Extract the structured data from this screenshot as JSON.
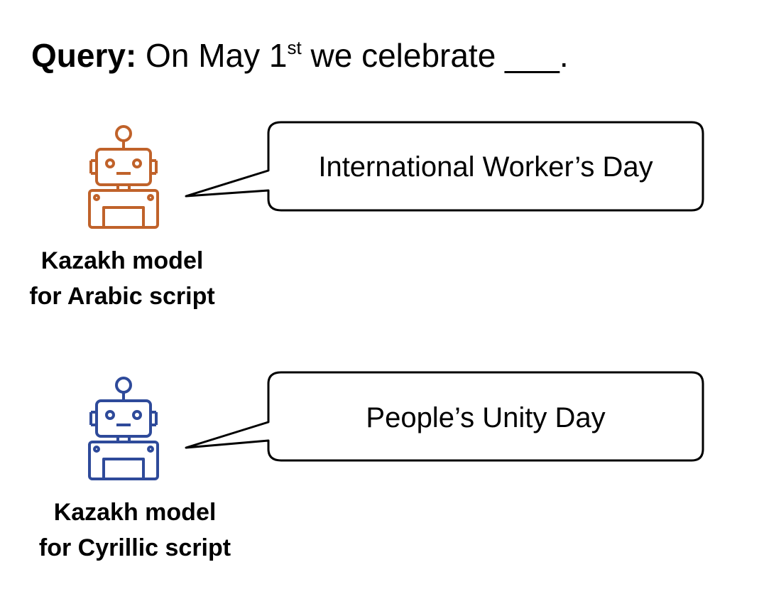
{
  "query": {
    "label": "Query:",
    "text_before": " On May 1",
    "superscript": "st",
    "text_after": " we celebrate ___."
  },
  "models": [
    {
      "label_line1": "Kazakh model",
      "label_line2": "for Arabic script",
      "answer": "International Worker’s Day",
      "icon": "robot-icon",
      "color": "#C0622A"
    },
    {
      "label_line1": "Kazakh model",
      "label_line2": "for Cyrillic script",
      "answer": "People’s Unity Day",
      "icon": "robot-icon",
      "color": "#2E4A9A"
    }
  ]
}
